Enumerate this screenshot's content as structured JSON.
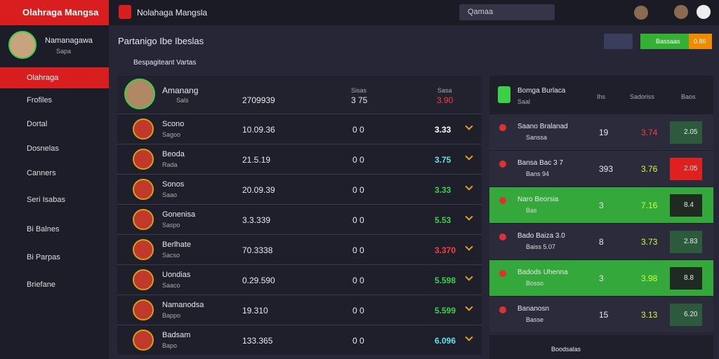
{
  "sidebar": {
    "brand": "Olahraga Mangsa",
    "profile": {
      "name": "Namanagawa",
      "status": "Sapa"
    },
    "menu": [
      "Olahraga",
      "Frofiles",
      "Dortal",
      "Dosnelas",
      "Canners",
      "Seri Isabas",
      "Bi Balnes",
      "Bi Parpas",
      "Briefane"
    ]
  },
  "topbar": {
    "title": "Nolahaga Mangsla",
    "search": "Qamaa"
  },
  "page": {
    "title": "Partanigo Ibe Ibeslas",
    "subtitle": "Bespagiteant Vartas",
    "button": "Bassaas",
    "badge": "0.86"
  },
  "table": {
    "header": {
      "name": "Amanang",
      "sub": "Sals",
      "value": "2709939",
      "score_label": "Sisas",
      "score": "3 75",
      "odds_label": "Sasa",
      "odds": "3.90"
    },
    "rows": [
      {
        "name": "Scono",
        "sub": "Sagoo",
        "value": "10.09.36",
        "score": "0 0",
        "odds": "3.33",
        "color": "#ffffff"
      },
      {
        "name": "Beoda",
        "sub": "Rada",
        "value": "21.5.19",
        "score": "0 0",
        "odds": "3.75",
        "color": "#5fe3e8"
      },
      {
        "name": "Sonos",
        "sub": "Saao",
        "value": "20.09.39",
        "score": "0 0",
        "odds": "3.33",
        "color": "#3ecf4a"
      },
      {
        "name": "Gonenisa",
        "sub": "Saspo",
        "value": "3.3.339",
        "score": "0 0",
        "odds": "5.53",
        "color": "#3ecf4a"
      },
      {
        "name": "Berlhate",
        "sub": "Sacso",
        "value": "70.3338",
        "score": "0 0",
        "odds": "3.370",
        "color": "#ff3b3b"
      },
      {
        "name": "Uondias",
        "sub": "Saaco",
        "value": "0.29.590",
        "score": "0 0",
        "odds": "5.598",
        "color": "#3ecf4a"
      },
      {
        "name": "Namanodsa",
        "sub": "Bappo",
        "value": "19.310",
        "score": "0 0",
        "odds": "5.599",
        "color": "#3ecf4a"
      },
      {
        "name": "Badsam",
        "sub": "Bapo",
        "value": "133.365",
        "score": "0 0",
        "odds": "6.096",
        "color": "#5fe3e8"
      }
    ]
  },
  "panel": {
    "header": {
      "name": "Bomga Burlaca",
      "sub": "Saal",
      "col1": "Ihs",
      "col2": "Sadoriss",
      "col3": "Baos"
    },
    "rows": [
      {
        "name": "Saano Bralanad",
        "sub": "Sanssa",
        "a": "19",
        "b": "3.74",
        "c": "2.05",
        "bg": "#2b2b3c",
        "box": "#2d5a3d"
      },
      {
        "name": "Bansa Bac 3 7",
        "sub": "Bans 94",
        "a": "393",
        "b": "3.76",
        "c": "2.05",
        "bg": "#2b2b3c",
        "box": "#e01f1f"
      },
      {
        "name": "Naro Beorsia",
        "sub": "Bas",
        "a": "3",
        "b": "7.16",
        "c": "8.4",
        "bg": "#34a83a",
        "box": "#1e2a22"
      },
      {
        "name": "Bado Baiza 3.0",
        "sub": "Baiss 5.07",
        "a": "8",
        "b": "3.73",
        "c": "2.83",
        "bg": "#2b2b3c",
        "box": "#2d5a3d"
      },
      {
        "name": "Badods Uhenna",
        "sub": "Bosso",
        "a": "3",
        "b": "3.98",
        "c": "8.8",
        "bg": "#34a83a",
        "box": "#1e2a22"
      },
      {
        "name": "Bananosn",
        "sub": "Basse",
        "a": "15",
        "b": "3.13",
        "c": "6.20",
        "bg": "#2b2b3c",
        "box": "#2d5a3d"
      }
    ],
    "footer": "Boodsalas"
  }
}
